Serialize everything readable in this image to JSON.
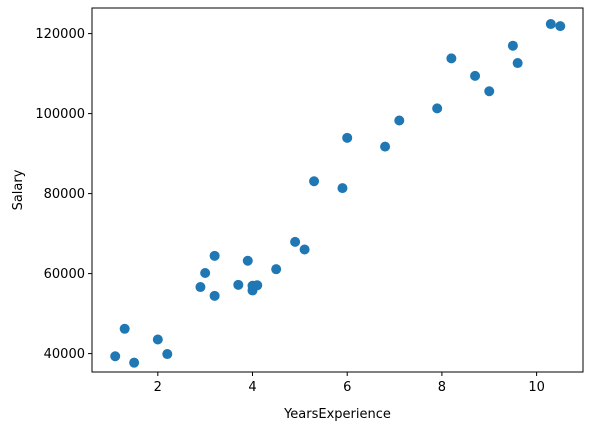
{
  "chart_data": {
    "type": "scatter",
    "title": "",
    "xlabel": "YearsExperience",
    "ylabel": "Salary",
    "xlim": [
      0.61,
      10.98
    ],
    "ylim": [
      35400,
      126400
    ],
    "xticks": [
      2,
      4,
      6,
      8,
      10
    ],
    "yticks": [
      40000,
      60000,
      80000,
      100000,
      120000
    ],
    "xtick_labels": [
      "2",
      "4",
      "6",
      "8",
      "10"
    ],
    "ytick_labels": [
      "40000",
      "60000",
      "80000",
      "100000",
      "120000"
    ],
    "grid": false,
    "marker_color": "#1f77b4",
    "points": [
      {
        "x": 1.1,
        "y": 39343
      },
      {
        "x": 1.3,
        "y": 46205
      },
      {
        "x": 1.5,
        "y": 37731
      },
      {
        "x": 2.0,
        "y": 43525
      },
      {
        "x": 2.2,
        "y": 39891
      },
      {
        "x": 2.9,
        "y": 56642
      },
      {
        "x": 3.0,
        "y": 60150
      },
      {
        "x": 3.2,
        "y": 54445
      },
      {
        "x": 3.2,
        "y": 64445
      },
      {
        "x": 3.7,
        "y": 57189
      },
      {
        "x": 3.9,
        "y": 63218
      },
      {
        "x": 4.0,
        "y": 55794
      },
      {
        "x": 4.0,
        "y": 56957
      },
      {
        "x": 4.1,
        "y": 57081
      },
      {
        "x": 4.5,
        "y": 61111
      },
      {
        "x": 4.9,
        "y": 67938
      },
      {
        "x": 5.1,
        "y": 66029
      },
      {
        "x": 5.3,
        "y": 83088
      },
      {
        "x": 5.9,
        "y": 81363
      },
      {
        "x": 6.0,
        "y": 93940
      },
      {
        "x": 6.8,
        "y": 91738
      },
      {
        "x": 7.1,
        "y": 98273
      },
      {
        "x": 7.9,
        "y": 101302
      },
      {
        "x": 8.2,
        "y": 113812
      },
      {
        "x": 8.7,
        "y": 109431
      },
      {
        "x": 9.0,
        "y": 105582
      },
      {
        "x": 9.5,
        "y": 116969
      },
      {
        "x": 9.6,
        "y": 112635
      },
      {
        "x": 10.3,
        "y": 122391
      },
      {
        "x": 10.5,
        "y": 121872
      }
    ]
  }
}
